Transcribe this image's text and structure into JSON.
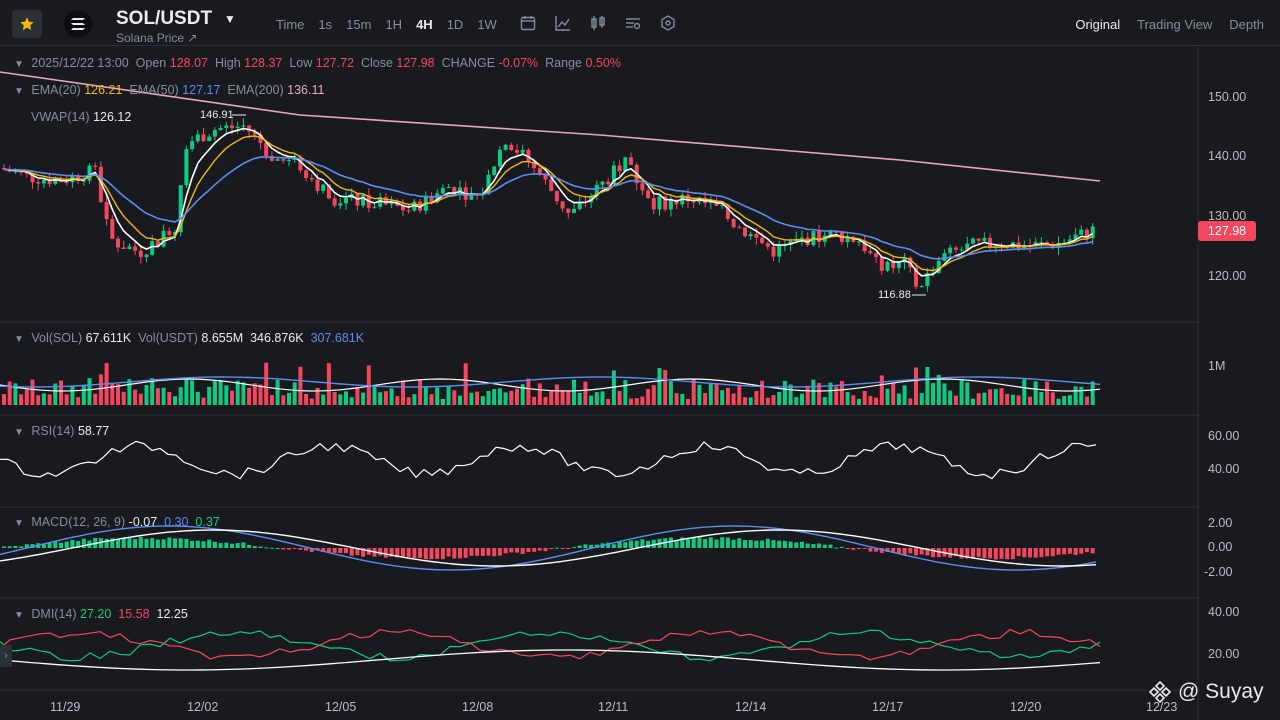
{
  "header": {
    "pair": "SOL/USDT",
    "subtitle": "Solana Price ↗",
    "intervals": [
      "Time",
      "1s",
      "15m",
      "1H",
      "4H",
      "1D",
      "1W"
    ],
    "active_interval": "4H",
    "views": [
      "Original",
      "Trading View",
      "Depth"
    ],
    "active_view": "Original",
    "tool_icons": [
      "calendar-icon",
      "line-chart-icon",
      "candles-icon",
      "indicator-settings-icon",
      "settings-hex-icon"
    ]
  },
  "ohlc": {
    "date": "2025/12/22 13:00",
    "open_label": "Open",
    "open": "128.07",
    "high_label": "High",
    "high": "128.37",
    "low_label": "Low",
    "low": "127.72",
    "close_label": "Close",
    "close": "127.98",
    "change_label": "CHANGE",
    "change": "-0.07%",
    "range_label": "Range",
    "range": "0.50%"
  },
  "ema": {
    "ema20_label": "EMA(20)",
    "ema20": "126.21",
    "ema50_label": "EMA(50)",
    "ema50": "127.17",
    "ema200_label": "EMA(200)",
    "ema200": "136.11"
  },
  "vwap": {
    "label": "VWAP(14)",
    "value": "126.12"
  },
  "price_axis": [
    "150.00",
    "140.00",
    "130.00",
    "120.00"
  ],
  "current_price": "127.98",
  "high_marker": "146.91",
  "low_marker": "116.88",
  "volume": {
    "sol_label": "Vol(SOL)",
    "sol": "67.611K",
    "usdt_label": "Vol(USDT)",
    "usdt": "8.655M",
    "ma1": "346.876K",
    "ma2": "307.681K",
    "axis": "1M"
  },
  "rsi": {
    "label": "RSI(14)",
    "value": "58.77",
    "axis": [
      "60.00",
      "40.00"
    ]
  },
  "macd": {
    "label": "MACD(12, 26, 9)",
    "v1": "-0.07",
    "v2": "0.30",
    "v3": "0.37",
    "axis": [
      "2.00",
      "0.00",
      "-2.00"
    ]
  },
  "dmi": {
    "label": "DMI(14)",
    "v1": "27.20",
    "v2": "15.58",
    "v3": "12.25",
    "axis": [
      "40.00",
      "20.00"
    ]
  },
  "dates": [
    "11/29",
    "12/02",
    "12/05",
    "12/08",
    "12/11",
    "12/14",
    "12/17",
    "12/20",
    "12/23"
  ],
  "watermark": "@ Suyay",
  "colors": {
    "up": "#0ecb81",
    "down": "#f6465d",
    "ema20": "#f0b90b",
    "ema50": "#5b8def",
    "ema200": "#e8a6c4",
    "vwap": "#ffffff"
  }
}
